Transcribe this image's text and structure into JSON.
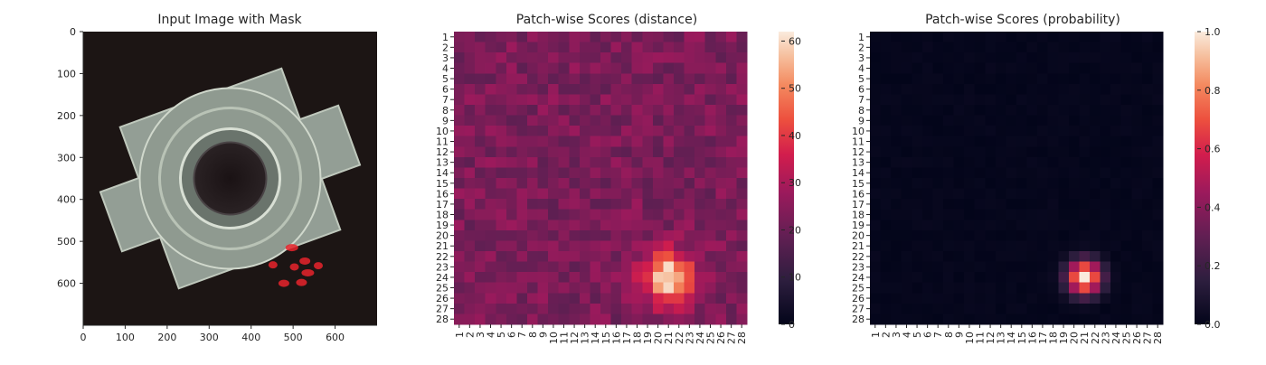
{
  "chart_data": [
    {
      "type": "image",
      "title": "Input Image with Mask",
      "x_ticks": [
        "0",
        "100",
        "200",
        "300",
        "400",
        "500",
        "600"
      ],
      "y_ticks": [
        "0",
        "100",
        "200",
        "300",
        "400",
        "500",
        "600"
      ],
      "xlim": [
        0,
        700
      ],
      "ylim": [
        700,
        0
      ],
      "mask_color": "#e8232b",
      "mask_points": [
        {
          "x": 452,
          "y": 556
        },
        {
          "x": 478,
          "y": 600
        },
        {
          "x": 497,
          "y": 515
        },
        {
          "x": 503,
          "y": 561
        },
        {
          "x": 528,
          "y": 547
        },
        {
          "x": 535,
          "y": 575
        },
        {
          "x": 560,
          "y": 558
        },
        {
          "x": 520,
          "y": 598
        }
      ]
    },
    {
      "type": "heatmap",
      "title": "Patch-wise Scores (distance)",
      "x_ticks": [
        "1",
        "2",
        "3",
        "4",
        "5",
        "6",
        "7",
        "8",
        "9",
        "10",
        "11",
        "12",
        "13",
        "14",
        "15",
        "16",
        "17",
        "18",
        "19",
        "20",
        "21",
        "22",
        "23",
        "24",
        "25",
        "26",
        "27",
        "28"
      ],
      "y_ticks": [
        "1",
        "2",
        "3",
        "4",
        "5",
        "6",
        "7",
        "8",
        "9",
        "10",
        "11",
        "12",
        "13",
        "14",
        "15",
        "16",
        "17",
        "18",
        "19",
        "20",
        "21",
        "22",
        "23",
        "24",
        "25",
        "26",
        "27",
        "28"
      ],
      "grid_size": 28,
      "background_value": 23,
      "anomaly_center": {
        "x": 21,
        "y": 24
      },
      "anomaly_peak": 62,
      "colorbar": {
        "min": 0,
        "max": 62,
        "ticks": [
          "0",
          "10",
          "20",
          "30",
          "40",
          "50",
          "60"
        ]
      }
    },
    {
      "type": "heatmap",
      "title": "Patch-wise Scores (probability)",
      "x_ticks": [
        "1",
        "2",
        "3",
        "4",
        "5",
        "6",
        "7",
        "8",
        "9",
        "10",
        "11",
        "12",
        "13",
        "14",
        "15",
        "16",
        "17",
        "18",
        "19",
        "20",
        "21",
        "22",
        "23",
        "24",
        "25",
        "26",
        "27",
        "28"
      ],
      "y_ticks": [
        "1",
        "2",
        "3",
        "4",
        "5",
        "6",
        "7",
        "8",
        "9",
        "10",
        "11",
        "12",
        "13",
        "14",
        "15",
        "16",
        "17",
        "18",
        "19",
        "20",
        "21",
        "22",
        "23",
        "24",
        "25",
        "26",
        "27",
        "28"
      ],
      "grid_size": 28,
      "background_value": 0.0,
      "anomaly_center": {
        "x": 21,
        "y": 24
      },
      "anomaly_peak": 1.0,
      "colorbar": {
        "min": 0.0,
        "max": 1.0,
        "ticks": [
          "0.0",
          "0.2",
          "0.4",
          "0.6",
          "0.8",
          "1.0"
        ]
      }
    }
  ]
}
